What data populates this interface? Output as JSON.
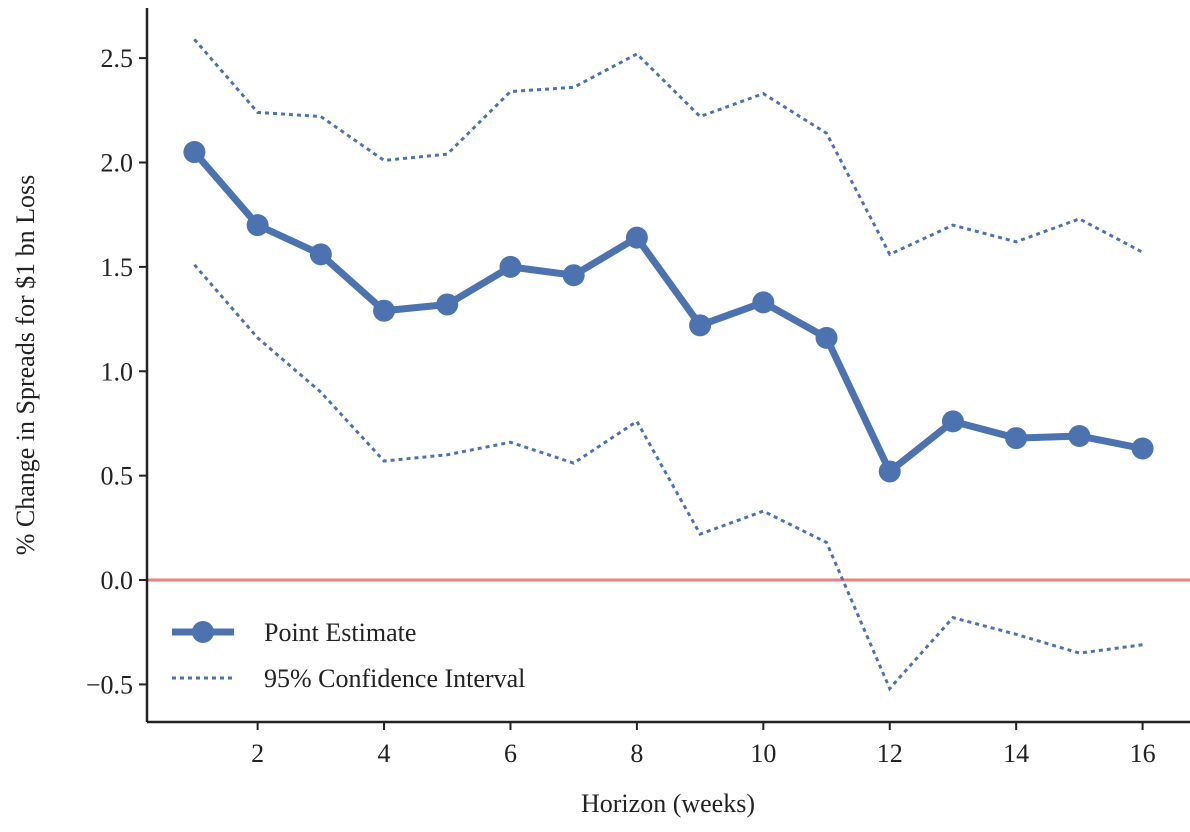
{
  "chart_data": {
    "type": "line",
    "x_label": "Horizon (weeks)",
    "y_label": "% Change in Spreads for  $1 bn Loss",
    "x": [
      1,
      2,
      3,
      4,
      5,
      6,
      7,
      8,
      9,
      10,
      11,
      12,
      13,
      14,
      15,
      16
    ],
    "series": [
      {
        "name": "Point Estimate",
        "color": "#4c72b0",
        "style": "solid-markers",
        "values": [
          2.05,
          1.7,
          1.56,
          1.29,
          1.32,
          1.5,
          1.46,
          1.64,
          1.22,
          1.33,
          1.16,
          0.52,
          0.76,
          0.68,
          0.69,
          0.63
        ]
      },
      {
        "name": "95% Confidence Interval",
        "color": "#4c72b0",
        "style": "dotted",
        "upper": [
          2.59,
          2.24,
          2.22,
          2.01,
          2.04,
          2.34,
          2.36,
          2.52,
          2.22,
          2.33,
          2.14,
          1.56,
          1.7,
          1.62,
          1.73,
          1.57
        ],
        "lower": [
          1.51,
          1.16,
          0.9,
          0.57,
          0.6,
          0.66,
          0.56,
          0.76,
          0.22,
          0.33,
          0.18,
          -0.52,
          -0.18,
          -0.26,
          -0.35,
          -0.31
        ]
      }
    ],
    "hline": {
      "value": 0,
      "color": "#f08080"
    },
    "xlim": [
      0.25,
      16.75
    ],
    "ylim": [
      -0.68,
      2.74
    ],
    "xticks": [
      2,
      4,
      6,
      8,
      10,
      12,
      14,
      16
    ],
    "yticks": [
      {
        "value": -0.5,
        "label": "−0.5"
      },
      {
        "value": 0,
        "label": "0.0"
      },
      0.5,
      {
        "value": 1,
        "label": "1.0"
      },
      1.5,
      {
        "value": 2,
        "label": "2.0"
      },
      2.5
    ],
    "legend": "lower-left"
  }
}
